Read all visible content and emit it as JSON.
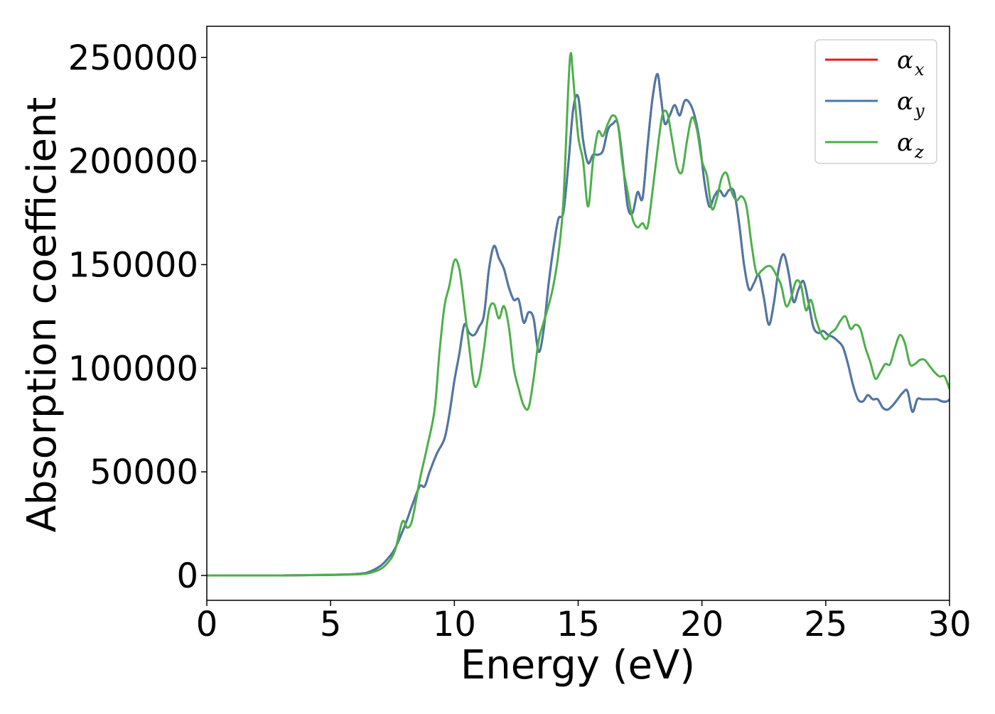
{
  "chart_data": {
    "type": "line",
    "title": "",
    "xlabel": "Energy (eV)",
    "ylabel": "Absorption coefficient",
    "xlim": [
      0,
      30
    ],
    "ylim": [
      -12000,
      265000
    ],
    "xticks": [
      0,
      5,
      10,
      15,
      20,
      25,
      30
    ],
    "xtick_labels": [
      "0",
      "5",
      "10",
      "15",
      "20",
      "25",
      "30"
    ],
    "yticks": [
      0,
      50000,
      100000,
      150000,
      200000,
      250000
    ],
    "ytick_labels": [
      "0",
      "50000",
      "100000",
      "150000",
      "200000",
      "250000"
    ],
    "grid": false,
    "legend_position": "top-right",
    "series": [
      {
        "name": "αx",
        "label_main": "α",
        "label_sub": "x",
        "color": "#e41a1c",
        "x": [
          0,
          3,
          5,
          6,
          6.5,
          7,
          7.3,
          7.6,
          8.0,
          8.3,
          8.6,
          8.8,
          9.0,
          9.3,
          9.6,
          9.8,
          10.0,
          10.2,
          10.4,
          10.6,
          10.8,
          11.0,
          11.2,
          11.4,
          11.6,
          11.8,
          12.0,
          12.2,
          12.4,
          12.6,
          12.8,
          13.0,
          13.2,
          13.4,
          13.6,
          13.8,
          14.0,
          14.2,
          14.4,
          14.6,
          14.8,
          15.0,
          15.2,
          15.4,
          15.6,
          15.8,
          16.0,
          16.2,
          16.4,
          16.6,
          16.8,
          17.0,
          17.2,
          17.4,
          17.6,
          17.8,
          18.0,
          18.2,
          18.35,
          18.5,
          18.7,
          18.9,
          19.1,
          19.3,
          19.5,
          19.7,
          19.9,
          20.1,
          20.3,
          20.5,
          20.7,
          20.9,
          21.1,
          21.3,
          21.5,
          21.7,
          21.9,
          22.1,
          22.3,
          22.5,
          22.7,
          22.9,
          23.1,
          23.3,
          23.5,
          23.7,
          23.9,
          24.1,
          24.3,
          24.5,
          24.7,
          24.9,
          25.1,
          25.3,
          25.5,
          25.7,
          25.9,
          26.1,
          26.3,
          26.5,
          26.7,
          26.9,
          27.1,
          27.3,
          27.5,
          27.7,
          27.9,
          28.1,
          28.3,
          28.5,
          28.7,
          28.9,
          29.1,
          29.3,
          29.5,
          29.7,
          29.9,
          30.0
        ],
        "y": [
          0,
          0,
          300,
          700,
          1500,
          4500,
          8000,
          13000,
          24000,
          34000,
          43000,
          43000,
          50000,
          59000,
          66000,
          78000,
          94000,
          107000,
          121000,
          117000,
          116000,
          120000,
          126000,
          148000,
          159000,
          153000,
          148000,
          139000,
          133000,
          133000,
          122000,
          127000,
          124000,
          108000,
          118000,
          140000,
          158000,
          172000,
          175000,
          198000,
          225000,
          231000,
          210000,
          199000,
          203000,
          203000,
          205000,
          215000,
          218000,
          218000,
          200000,
          178000,
          175000,
          185000,
          182000,
          207000,
          230000,
          242000,
          230000,
          218000,
          222000,
          227000,
          222000,
          229000,
          228000,
          222000,
          210000,
          190000,
          178000,
          183000,
          186000,
          183000,
          186000,
          185000,
          170000,
          150000,
          138000,
          141000,
          145000,
          134000,
          121000,
          131000,
          148000,
          155000,
          146000,
          132000,
          138000,
          142000,
          132000,
          120000,
          117000,
          118000,
          116000,
          115000,
          113000,
          110000,
          102000,
          92000,
          85000,
          84000,
          87000,
          85000,
          85000,
          81000,
          80000,
          82000,
          85000,
          88000,
          89000,
          79000,
          85000,
          85000,
          85000,
          85000,
          85000,
          84000,
          84000,
          85000
        ]
      },
      {
        "name": "αy",
        "label_main": "α",
        "label_sub": "y",
        "color": "#4a78a8",
        "x": [
          0,
          3,
          5,
          6,
          6.5,
          7,
          7.3,
          7.6,
          8.0,
          8.3,
          8.6,
          8.8,
          9.0,
          9.3,
          9.6,
          9.8,
          10.0,
          10.2,
          10.4,
          10.6,
          10.8,
          11.0,
          11.2,
          11.4,
          11.6,
          11.8,
          12.0,
          12.2,
          12.4,
          12.6,
          12.8,
          13.0,
          13.2,
          13.4,
          13.6,
          13.8,
          14.0,
          14.2,
          14.4,
          14.6,
          14.8,
          15.0,
          15.2,
          15.4,
          15.6,
          15.8,
          16.0,
          16.2,
          16.4,
          16.6,
          16.8,
          17.0,
          17.2,
          17.4,
          17.6,
          17.8,
          18.0,
          18.2,
          18.35,
          18.5,
          18.7,
          18.9,
          19.1,
          19.3,
          19.5,
          19.7,
          19.9,
          20.1,
          20.3,
          20.5,
          20.7,
          20.9,
          21.1,
          21.3,
          21.5,
          21.7,
          21.9,
          22.1,
          22.3,
          22.5,
          22.7,
          22.9,
          23.1,
          23.3,
          23.5,
          23.7,
          23.9,
          24.1,
          24.3,
          24.5,
          24.7,
          24.9,
          25.1,
          25.3,
          25.5,
          25.7,
          25.9,
          26.1,
          26.3,
          26.5,
          26.7,
          26.9,
          27.1,
          27.3,
          27.5,
          27.7,
          27.9,
          28.1,
          28.3,
          28.5,
          28.7,
          28.9,
          29.1,
          29.3,
          29.5,
          29.7,
          29.9,
          30.0
        ],
        "y": [
          0,
          0,
          300,
          700,
          1500,
          4500,
          8000,
          13000,
          24000,
          34000,
          43000,
          43000,
          50000,
          59000,
          66000,
          78000,
          94000,
          107000,
          121000,
          117000,
          116000,
          120000,
          126000,
          148000,
          159000,
          153000,
          148000,
          139000,
          133000,
          133000,
          122000,
          127000,
          124000,
          108000,
          118000,
          140000,
          158000,
          172000,
          175000,
          198000,
          225000,
          231000,
          210000,
          199000,
          203000,
          203000,
          205000,
          215000,
          218000,
          218000,
          200000,
          178000,
          175000,
          185000,
          182000,
          207000,
          230000,
          242000,
          230000,
          218000,
          222000,
          227000,
          222000,
          229000,
          228000,
          222000,
          210000,
          190000,
          178000,
          183000,
          186000,
          183000,
          186000,
          185000,
          170000,
          150000,
          138000,
          141000,
          145000,
          134000,
          121000,
          131000,
          148000,
          155000,
          146000,
          132000,
          138000,
          142000,
          132000,
          120000,
          117000,
          118000,
          116000,
          115000,
          113000,
          110000,
          102000,
          92000,
          85000,
          84000,
          87000,
          85000,
          85000,
          81000,
          80000,
          82000,
          85000,
          88000,
          89000,
          79000,
          85000,
          85000,
          85000,
          85000,
          85000,
          84000,
          84000,
          85000
        ]
      },
      {
        "name": "αz",
        "label_main": "α",
        "label_sub": "z",
        "color": "#4daf4a",
        "x": [
          0,
          3,
          5,
          6,
          6.5,
          7,
          7.3,
          7.6,
          7.9,
          8.1,
          8.3,
          8.6,
          8.9,
          9.2,
          9.4,
          9.6,
          9.8,
          10.0,
          10.2,
          10.4,
          10.6,
          10.8,
          11.0,
          11.2,
          11.4,
          11.6,
          11.8,
          12.0,
          12.2,
          12.4,
          12.6,
          12.8,
          13.0,
          13.2,
          13.4,
          13.6,
          13.8,
          14.0,
          14.2,
          14.4,
          14.6,
          14.7,
          14.8,
          15.0,
          15.2,
          15.4,
          15.6,
          15.8,
          16.0,
          16.2,
          16.4,
          16.6,
          16.8,
          17.0,
          17.2,
          17.4,
          17.6,
          17.8,
          18.0,
          18.2,
          18.4,
          18.6,
          18.8,
          19.0,
          19.2,
          19.4,
          19.6,
          19.8,
          20.0,
          20.2,
          20.4,
          20.6,
          20.8,
          21.0,
          21.2,
          21.4,
          21.6,
          21.8,
          22.0,
          22.2,
          22.4,
          22.6,
          22.8,
          23.0,
          23.2,
          23.4,
          23.6,
          23.8,
          24.0,
          24.2,
          24.4,
          24.6,
          24.8,
          25.0,
          25.2,
          25.4,
          25.6,
          25.8,
          26.0,
          26.2,
          26.4,
          26.6,
          26.8,
          27.0,
          27.2,
          27.4,
          27.6,
          27.8,
          28.0,
          28.2,
          28.4,
          28.6,
          28.8,
          29.0,
          29.2,
          29.4,
          29.6,
          29.8,
          30.0
        ],
        "y": [
          0,
          0,
          200,
          500,
          1000,
          3000,
          6000,
          12000,
          26000,
          23000,
          27000,
          46000,
          62000,
          80000,
          108000,
          130000,
          140000,
          152000,
          148000,
          130000,
          110000,
          92000,
          95000,
          110000,
          128000,
          131000,
          124000,
          130000,
          120000,
          100000,
          90000,
          82000,
          81000,
          95000,
          113000,
          122000,
          130000,
          140000,
          155000,
          180000,
          235000,
          252000,
          240000,
          212000,
          200000,
          178000,
          200000,
          214000,
          212000,
          218000,
          222000,
          218000,
          198000,
          185000,
          172000,
          168000,
          170000,
          168000,
          185000,
          205000,
          222000,
          223000,
          210000,
          197000,
          195000,
          210000,
          221000,
          215000,
          200000,
          193000,
          177000,
          182000,
          192000,
          194000,
          185000,
          181000,
          183000,
          178000,
          160000,
          146000,
          147000,
          149000,
          149000,
          145000,
          140000,
          130000,
          134000,
          142000,
          140000,
          128000,
          133000,
          124000,
          117000,
          114000,
          117000,
          119000,
          123000,
          125000,
          119000,
          121000,
          119000,
          110000,
          103000,
          95000,
          98000,
          102000,
          102000,
          110000,
          116000,
          112000,
          102000,
          102000,
          104000,
          104000,
          101000,
          98000,
          96000,
          96000,
          90000
        ]
      }
    ]
  }
}
